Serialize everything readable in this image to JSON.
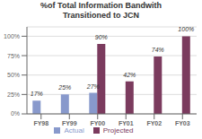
{
  "chart_data": {
    "type": "bar",
    "title": "%of Total Information Bandwith\nTransitioned to JCN",
    "categories": [
      "FY98",
      "FY99",
      "FY00",
      "FY01",
      "FY02",
      "FY03"
    ],
    "series": [
      {
        "name": "Actual",
        "color": "#8899CC",
        "values": [
          17,
          25,
          27,
          null,
          null,
          null
        ],
        "value_labels": [
          "17%",
          "25%",
          "27%",
          null,
          null,
          null
        ]
      },
      {
        "name": "Projected",
        "color": "#7B3B5E",
        "values": [
          null,
          null,
          90,
          42,
          74,
          100
        ],
        "value_labels": [
          null,
          null,
          "90%",
          "42%",
          "74%",
          "100%"
        ]
      }
    ],
    "ylim": [
      0,
      112
    ],
    "yticks": [
      {
        "value": 0,
        "label": "0%"
      },
      {
        "value": 25,
        "label": "25%"
      },
      {
        "value": 50,
        "label": "50%"
      },
      {
        "value": 75,
        "label": "75%"
      },
      {
        "value": 100,
        "label": "100%"
      }
    ],
    "grid": true,
    "legend": "bottom",
    "data_labels": true
  }
}
